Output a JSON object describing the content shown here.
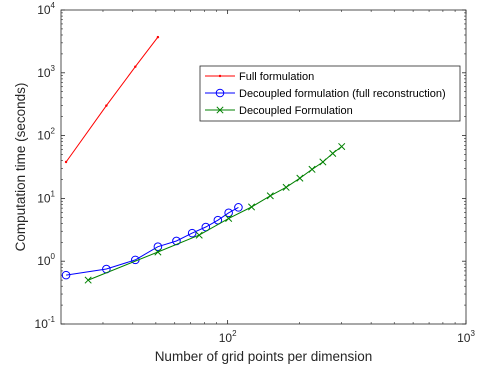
{
  "chart_data": {
    "type": "line",
    "title": "",
    "xlabel": "Number of grid points per dimension",
    "ylabel": "Computation time (seconds)",
    "xscale": "log",
    "yscale": "log",
    "xlim": [
      20,
      1000
    ],
    "ylim": [
      0.1,
      10000
    ],
    "xticks": [
      {
        "value": 100,
        "base": "10",
        "exp": "2"
      },
      {
        "value": 1000,
        "base": "10",
        "exp": "3"
      }
    ],
    "yticks": [
      {
        "value": 0.1,
        "base": "10",
        "exp": "-1"
      },
      {
        "value": 1,
        "base": "10",
        "exp": "0"
      },
      {
        "value": 10,
        "base": "10",
        "exp": "1"
      },
      {
        "value": 100,
        "base": "10",
        "exp": "2"
      },
      {
        "value": 1000,
        "base": "10",
        "exp": "3"
      },
      {
        "value": 10000,
        "base": "10",
        "exp": "4"
      }
    ],
    "grid": false,
    "legend_position": "upper-right",
    "series": [
      {
        "name": "Full formulation",
        "color": "#ff0000",
        "marker": "dot",
        "x": [
          21,
          31,
          41,
          51
        ],
        "y": [
          38,
          300,
          1250,
          3700
        ]
      },
      {
        "name": "Decoupled formulation (full reconstruction)",
        "color": "#0000ff",
        "marker": "circle",
        "x": [
          21,
          31,
          41,
          51,
          61,
          71,
          81,
          91,
          101,
          111
        ],
        "y": [
          0.6,
          0.75,
          1.05,
          1.7,
          2.1,
          2.8,
          3.5,
          4.5,
          5.9,
          7.2
        ]
      },
      {
        "name": "Decoupled Formulation",
        "color": "#008000",
        "marker": "x",
        "x": [
          26,
          51,
          76,
          101,
          126,
          151,
          176,
          201,
          226,
          251,
          276,
          301
        ],
        "y": [
          0.5,
          1.4,
          2.6,
          4.8,
          7.3,
          11,
          15,
          21,
          29,
          38,
          52,
          67
        ]
      }
    ]
  }
}
